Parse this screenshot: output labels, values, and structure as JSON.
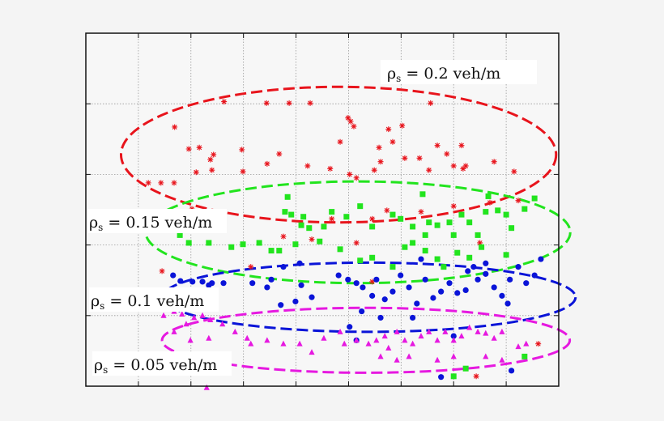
{
  "chart_data": {
    "type": "scatter",
    "title": "",
    "xlabel": "",
    "ylabel": "",
    "xlim": [
      0,
      9
    ],
    "ylim": [
      0,
      5
    ],
    "grid": true,
    "grid_style": "dotted",
    "tick_labels_shown": false,
    "series": [
      {
        "marker": "asterisk",
        "color": "#e8141c",
        "points": [
          [
            1.69,
            3.67
          ],
          [
            1.96,
            3.36
          ],
          [
            2.16,
            3.38
          ],
          [
            2.43,
            3.28
          ],
          [
            2.63,
            4.03
          ],
          [
            2.97,
            3.35
          ],
          [
            3.44,
            4.01
          ],
          [
            3.87,
            4.01
          ],
          [
            4.27,
            4.01
          ],
          [
            4.99,
            3.8
          ],
          [
            5.04,
            3.75
          ],
          [
            5.1,
            3.68
          ],
          [
            5.58,
            3.38
          ],
          [
            5.76,
            3.64
          ],
          [
            5.84,
            3.46
          ],
          [
            6.02,
            3.69
          ],
          [
            6.56,
            4.01
          ],
          [
            6.69,
            3.41
          ],
          [
            6.87,
            3.29
          ],
          [
            7.15,
            3.41
          ],
          [
            7.23,
            3.12
          ],
          [
            7.77,
            3.18
          ],
          [
            1.19,
            2.88
          ],
          [
            1.43,
            2.88
          ],
          [
            1.68,
            2.88
          ],
          [
            2.1,
            3.03
          ],
          [
            2.37,
            3.21
          ],
          [
            2.4,
            3.06
          ],
          [
            2.99,
            3.04
          ],
          [
            3.45,
            3.15
          ],
          [
            3.68,
            3.29
          ],
          [
            4.22,
            3.12
          ],
          [
            4.65,
            3.08
          ],
          [
            4.84,
            3.46
          ],
          [
            5.02,
            3.0
          ],
          [
            5.15,
            2.95
          ],
          [
            5.49,
            3.06
          ],
          [
            5.61,
            3.18
          ],
          [
            6.07,
            3.23
          ],
          [
            6.35,
            3.23
          ],
          [
            6.53,
            3.06
          ],
          [
            7.0,
            3.12
          ],
          [
            7.18,
            3.08
          ],
          [
            8.15,
            3.04
          ],
          [
            8.23,
            2.63
          ],
          [
            1.45,
            1.63
          ],
          [
            2.02,
            2.51
          ],
          [
            3.14,
            1.69
          ],
          [
            3.76,
            2.12
          ],
          [
            4.3,
            2.08
          ],
          [
            4.68,
            2.37
          ],
          [
            5.15,
            2.03
          ],
          [
            5.45,
            2.37
          ],
          [
            5.73,
            2.49
          ],
          [
            6.38,
            2.47
          ],
          [
            7.0,
            2.55
          ],
          [
            7.69,
            2.6
          ],
          [
            7.5,
            2.03
          ],
          [
            8.61,
            0.6
          ],
          [
            7.43,
            0.14
          ],
          [
            5.45,
            1.48
          ]
        ]
      },
      {
        "marker": "square",
        "color": "#22e41e",
        "points": [
          [
            3.84,
            2.68
          ],
          [
            3.79,
            2.47
          ],
          [
            3.91,
            2.43
          ],
          [
            4.14,
            2.4
          ],
          [
            4.1,
            2.28
          ],
          [
            4.25,
            2.24
          ],
          [
            4.53,
            2.26
          ],
          [
            4.68,
            2.47
          ],
          [
            4.96,
            2.4
          ],
          [
            5.22,
            2.55
          ],
          [
            5.45,
            2.26
          ],
          [
            5.84,
            2.43
          ],
          [
            5.99,
            2.37
          ],
          [
            6.22,
            2.26
          ],
          [
            6.41,
            2.72
          ],
          [
            6.46,
            2.14
          ],
          [
            6.53,
            2.32
          ],
          [
            6.69,
            2.28
          ],
          [
            6.92,
            2.32
          ],
          [
            7.0,
            2.14
          ],
          [
            7.15,
            2.43
          ],
          [
            7.3,
            2.32
          ],
          [
            7.46,
            2.14
          ],
          [
            7.61,
            2.47
          ],
          [
            7.66,
            2.69
          ],
          [
            7.84,
            2.49
          ],
          [
            8.0,
            2.43
          ],
          [
            8.35,
            2.51
          ],
          [
            8.54,
            2.66
          ],
          [
            8.1,
            2.24
          ],
          [
            1.96,
            2.03
          ],
          [
            2.34,
            2.03
          ],
          [
            2.77,
            1.97
          ],
          [
            2.99,
            2.01
          ],
          [
            3.3,
            2.03
          ],
          [
            3.53,
            1.92
          ],
          [
            3.68,
            1.92
          ],
          [
            3.99,
            2.01
          ],
          [
            4.45,
            2.05
          ],
          [
            4.84,
            1.94
          ],
          [
            5.22,
            1.78
          ],
          [
            5.45,
            1.82
          ],
          [
            5.84,
            1.69
          ],
          [
            6.07,
            1.97
          ],
          [
            6.22,
            2.03
          ],
          [
            6.46,
            1.92
          ],
          [
            6.69,
            1.8
          ],
          [
            6.81,
            1.69
          ],
          [
            7.07,
            1.89
          ],
          [
            7.3,
            1.82
          ],
          [
            7.53,
            1.97
          ],
          [
            8.0,
            1.86
          ],
          [
            8.35,
            0.42
          ],
          [
            7.0,
            0.14
          ],
          [
            7.23,
            0.25
          ],
          [
            1.79,
            2.14
          ]
        ]
      },
      {
        "marker": "circle",
        "color": "#0a14d8",
        "points": [
          [
            1.66,
            1.57
          ],
          [
            1.8,
            1.49
          ],
          [
            2.03,
            1.48
          ],
          [
            2.22,
            1.48
          ],
          [
            2.34,
            1.43
          ],
          [
            2.4,
            1.46
          ],
          [
            2.62,
            1.46
          ],
          [
            3.17,
            1.46
          ],
          [
            3.45,
            1.4
          ],
          [
            3.53,
            1.51
          ],
          [
            4.07,
            1.74
          ],
          [
            3.76,
            1.69
          ],
          [
            4.1,
            1.43
          ],
          [
            3.71,
            1.15
          ],
          [
            3.99,
            1.2
          ],
          [
            4.3,
            1.26
          ],
          [
            4.81,
            1.57
          ],
          [
            4.99,
            1.51
          ],
          [
            5.15,
            1.46
          ],
          [
            5.27,
            1.4
          ],
          [
            5.45,
            1.28
          ],
          [
            5.53,
            1.51
          ],
          [
            5.69,
            1.23
          ],
          [
            5.84,
            1.34
          ],
          [
            5.99,
            1.57
          ],
          [
            6.15,
            1.4
          ],
          [
            6.3,
            1.17
          ],
          [
            6.46,
            1.51
          ],
          [
            6.61,
            1.25
          ],
          [
            6.76,
            1.34
          ],
          [
            6.92,
            1.46
          ],
          [
            7.07,
            1.32
          ],
          [
            7.23,
            1.36
          ],
          [
            7.38,
            1.69
          ],
          [
            7.46,
            1.51
          ],
          [
            7.61,
            1.74
          ],
          [
            7.77,
            1.4
          ],
          [
            7.92,
            1.28
          ],
          [
            8.07,
            1.51
          ],
          [
            8.23,
            1.69
          ],
          [
            8.38,
            1.46
          ],
          [
            8.54,
            1.57
          ],
          [
            8.66,
            1.8
          ],
          [
            5.02,
            0.84
          ],
          [
            5.15,
            0.65
          ],
          [
            5.25,
            1.06
          ],
          [
            5.61,
            0.97
          ],
          [
            7.0,
            0.71
          ],
          [
            6.76,
            0.13
          ],
          [
            8.1,
            0.22
          ],
          [
            6.22,
            0.97
          ],
          [
            7.61,
            1.59
          ],
          [
            7.27,
            1.63
          ],
          [
            8.03,
            1.17
          ],
          [
            6.38,
            1.8
          ]
        ]
      },
      {
        "marker": "triangle",
        "color": "#e619e0",
        "points": [
          [
            1.48,
            1.0
          ],
          [
            1.68,
            1.06
          ],
          [
            1.83,
            1.02
          ],
          [
            2.06,
            0.97
          ],
          [
            2.22,
            1.0
          ],
          [
            2.37,
            0.94
          ],
          [
            2.6,
            0.88
          ],
          [
            1.99,
            0.65
          ],
          [
            2.34,
            0.68
          ],
          [
            2.84,
            0.77
          ],
          [
            3.07,
            0.68
          ],
          [
            3.14,
            0.6
          ],
          [
            3.45,
            0.65
          ],
          [
            3.76,
            0.6
          ],
          [
            4.07,
            0.6
          ],
          [
            4.3,
            0.48
          ],
          [
            4.53,
            0.68
          ],
          [
            4.92,
            0.6
          ],
          [
            5.15,
            0.65
          ],
          [
            5.38,
            0.6
          ],
          [
            5.53,
            0.65
          ],
          [
            5.69,
            0.71
          ],
          [
            5.76,
            0.54
          ],
          [
            5.92,
            0.77
          ],
          [
            6.07,
            0.65
          ],
          [
            6.22,
            0.6
          ],
          [
            6.38,
            0.71
          ],
          [
            6.53,
            0.77
          ],
          [
            6.69,
            0.65
          ],
          [
            6.84,
            0.77
          ],
          [
            7.0,
            0.65
          ],
          [
            7.15,
            0.71
          ],
          [
            7.3,
            0.83
          ],
          [
            7.46,
            0.77
          ],
          [
            7.61,
            0.75
          ],
          [
            7.77,
            0.68
          ],
          [
            7.92,
            0.77
          ],
          [
            8.23,
            0.56
          ],
          [
            8.38,
            0.6
          ],
          [
            1.68,
            0.77
          ],
          [
            5.61,
            0.42
          ],
          [
            5.92,
            0.37
          ],
          [
            6.15,
            0.42
          ],
          [
            7.0,
            0.42
          ],
          [
            6.69,
            0.37
          ],
          [
            7.61,
            0.42
          ],
          [
            7.92,
            0.37
          ],
          [
            2.3,
            -0.02
          ],
          [
            1.91,
            0.88
          ],
          [
            4.84,
            0.77
          ]
        ]
      }
    ],
    "annotations": [
      {
        "rho": "ρ",
        "sub": "s",
        "text": " = 0.2 veh/m",
        "color": "#e8141c",
        "ellipse": {
          "cx": 4.81,
          "cy": 3.28,
          "rx": 4.14,
          "ry": 0.96
        }
      },
      {
        "rho": "ρ",
        "sub": "s",
        "text": " = 0.15 veh/m",
        "color": "#22e41e",
        "ellipse": {
          "cx": 5.18,
          "cy": 2.18,
          "rx": 4.04,
          "ry": 0.72
        }
      },
      {
        "rho": "ρ",
        "sub": "s",
        "text": " = 0.1 veh/m",
        "color": "#0a14d8",
        "ellipse": {
          "cx": 5.39,
          "cy": 1.26,
          "rx": 3.93,
          "ry": 0.49
        }
      },
      {
        "rho": "ρ",
        "sub": "s",
        "text": " = 0.05 veh/m",
        "color": "#e619e0",
        "ellipse": {
          "cx": 5.33,
          "cy": 0.65,
          "rx": 3.88,
          "ry": 0.46
        }
      }
    ]
  }
}
